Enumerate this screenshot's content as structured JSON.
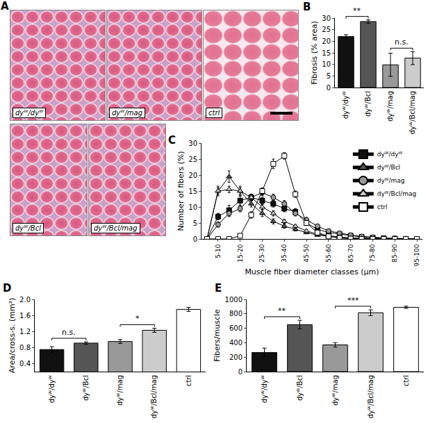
{
  "panel_A": {
    "panel": "A",
    "images": [
      {
        "label": "dyᵂ/dyᵂ"
      },
      {
        "label": "dyᵂ/mag"
      },
      {
        "label": "ctrl"
      },
      {
        "label": "dyᵂ/Bcl"
      },
      {
        "label": "dyᵂ/Bcl/mag"
      }
    ]
  },
  "chart_data": [
    {
      "panel": "B",
      "type": "bar",
      "ylabel": "Fibrosis (% area)",
      "categories": [
        "dyᵂ/dyᵂ",
        "dyᵂ/Bcl",
        "dyᵂ/mag",
        "dyᵂ/Bcl/mag"
      ],
      "values": [
        22,
        28.5,
        9.8,
        12.7
      ],
      "errors": [
        0.8,
        0.7,
        5,
        2.8
      ],
      "colors": [
        "#111111",
        "#555555",
        "#999999",
        "#cccccc"
      ],
      "ylim": [
        0,
        30
      ],
      "yticks": [
        0,
        5,
        10,
        15,
        20,
        25,
        30
      ],
      "grid": false,
      "annotations": [
        {
          "text": "**",
          "from": "dyᵂ/dyᵂ",
          "to": "dyᵂ/Bcl"
        },
        {
          "text": "n.s.",
          "from": "dyᵂ/mag",
          "to": "dyᵂ/Bcl/mag"
        }
      ]
    },
    {
      "panel": "C",
      "type": "line",
      "xlabel": "Muscle fiber diameter classes (μm)",
      "ylabel": "Number of fibers (%)",
      "categories": [
        null,
        "5-10",
        null,
        "15-20",
        null,
        "25-30",
        null,
        "35-40",
        null,
        "45-50",
        null,
        "55-60",
        null,
        "65-70",
        null,
        "75-80",
        null,
        "85-90",
        null,
        "95-100"
      ],
      "series": [
        {
          "name": "dyᵂ/dyᵂ",
          "color": "#111111",
          "marker": "square",
          "values": [
            0,
            7,
            9,
            12,
            13,
            12,
            11,
            9.5,
            8.5,
            5,
            3,
            2,
            1.5,
            1,
            0.6,
            0.4,
            0.2,
            0.1,
            0,
            0
          ],
          "errors": [
            0,
            1,
            1.5,
            1.5,
            1,
            1,
            1,
            1,
            1,
            0.8,
            0.6,
            0.5,
            0.4,
            0.3,
            0.2,
            0.2,
            0.1,
            0.1,
            0,
            0
          ]
        },
        {
          "name": "dyᵂ/Bcl",
          "color": "#555555",
          "marker": "triangle-up",
          "values": [
            0,
            15,
            19.5,
            15,
            11,
            8,
            5.5,
            4,
            3,
            2,
            1.2,
            0.8,
            0.4,
            0.2,
            0.1,
            0,
            0,
            0,
            0,
            0
          ],
          "errors": [
            0,
            1.5,
            1.8,
            1.5,
            1,
            1,
            0.8,
            0.6,
            0.5,
            0.4,
            0.3,
            0.2,
            0.1,
            0.1,
            0,
            0,
            0,
            0,
            0,
            0
          ]
        },
        {
          "name": "dyᵂ/mag",
          "color": "#999999",
          "marker": "circle",
          "values": [
            0,
            4.5,
            8,
            9.5,
            13,
            14.5,
            13,
            11,
            8,
            6,
            4,
            2.5,
            1.8,
            1.2,
            0.8,
            0.5,
            0.3,
            0.2,
            0.1,
            0
          ],
          "errors": [
            0,
            0.8,
            1,
            1,
            1,
            1,
            1,
            1,
            0.8,
            0.7,
            0.5,
            0.4,
            0.3,
            0.3,
            0.2,
            0.2,
            0.1,
            0.1,
            0,
            0
          ]
        },
        {
          "name": "dyᵂ/Bcl/mag",
          "color": "#cccccc",
          "marker": "triangle-up",
          "values": [
            0,
            15,
            15.5,
            15,
            13,
            10,
            8,
            5.5,
            4,
            2.5,
            1.5,
            1,
            0.6,
            0.3,
            0.2,
            0.1,
            0,
            0,
            0,
            0
          ],
          "errors": [
            0,
            1,
            1,
            1,
            1,
            0.8,
            0.8,
            0.6,
            0.5,
            0.4,
            0.3,
            0.2,
            0.1,
            0.1,
            0,
            0,
            0,
            0,
            0,
            0
          ]
        },
        {
          "name": "ctrl",
          "color": "#ffffff",
          "marker": "square",
          "values": [
            0,
            0,
            0,
            1,
            7.5,
            15,
            23.5,
            26,
            14,
            5,
            2,
            0.8,
            0.3,
            0.1,
            0,
            0,
            0,
            0,
            0,
            0
          ],
          "errors": [
            0,
            0,
            0,
            0.3,
            1,
            1,
            1.5,
            1,
            1,
            0.5,
            0.3,
            0.2,
            0.1,
            0,
            0,
            0,
            0,
            0,
            0,
            0
          ]
        }
      ],
      "ylim": [
        0,
        30
      ],
      "yticks": [
        0,
        5,
        10,
        15,
        20,
        25,
        30
      ],
      "grid": false,
      "legend": "top right"
    },
    {
      "panel": "D",
      "type": "bar",
      "ylabel": "Area/cross-s. (mm²)",
      "categories": [
        "dyᵂ/dyᵂ",
        "dyᵂ/Bcl",
        "dyᵂ/mag",
        "dyᵂ/Bcl/mag",
        "ctrl"
      ],
      "values": [
        0.75,
        0.91,
        0.95,
        1.23,
        1.75
      ],
      "errors": [
        0.07,
        0.03,
        0.05,
        0.05,
        0.05
      ],
      "colors": [
        "#111111",
        "#555555",
        "#999999",
        "#cccccc",
        "#ffffff"
      ],
      "ylim": [
        0.2,
        2.0
      ],
      "yticks": [
        0.4,
        0.8,
        1.2,
        1.6,
        {
          "value": 2,
          "label": "2.0"
        }
      ],
      "grid": false,
      "annotations": [
        {
          "text": "n.s.",
          "from": "dyᵂ/dyᵂ",
          "to": "dyᵂ/Bcl"
        },
        {
          "text": "*",
          "from": "dyᵂ/mag",
          "to": "dyᵂ/Bcl/mag"
        }
      ]
    },
    {
      "panel": "E",
      "type": "bar",
      "ylabel": "Fibers/muscle",
      "categories": [
        "dyᵂ/dyᵂ",
        "dyᵂ/Bcl",
        "dyᵂ/mag",
        "dyᵂ/Bcl/mag",
        "ctrl"
      ],
      "values": [
        265,
        650,
        370,
        815,
        890
      ],
      "errors": [
        60,
        60,
        30,
        40,
        15
      ],
      "colors": [
        "#111111",
        "#555555",
        "#999999",
        "#cccccc",
        "#ffffff"
      ],
      "ylim": [
        0,
        1000
      ],
      "yticks": [
        0,
        200,
        400,
        600,
        800,
        1000
      ],
      "grid": false,
      "annotations": [
        {
          "text": "**",
          "from": "dyᵂ/dyᵂ",
          "to": "dyᵂ/Bcl"
        },
        {
          "text": "***",
          "from": "dyᵂ/mag",
          "to": "dyᵂ/Bcl/mag"
        }
      ]
    }
  ]
}
